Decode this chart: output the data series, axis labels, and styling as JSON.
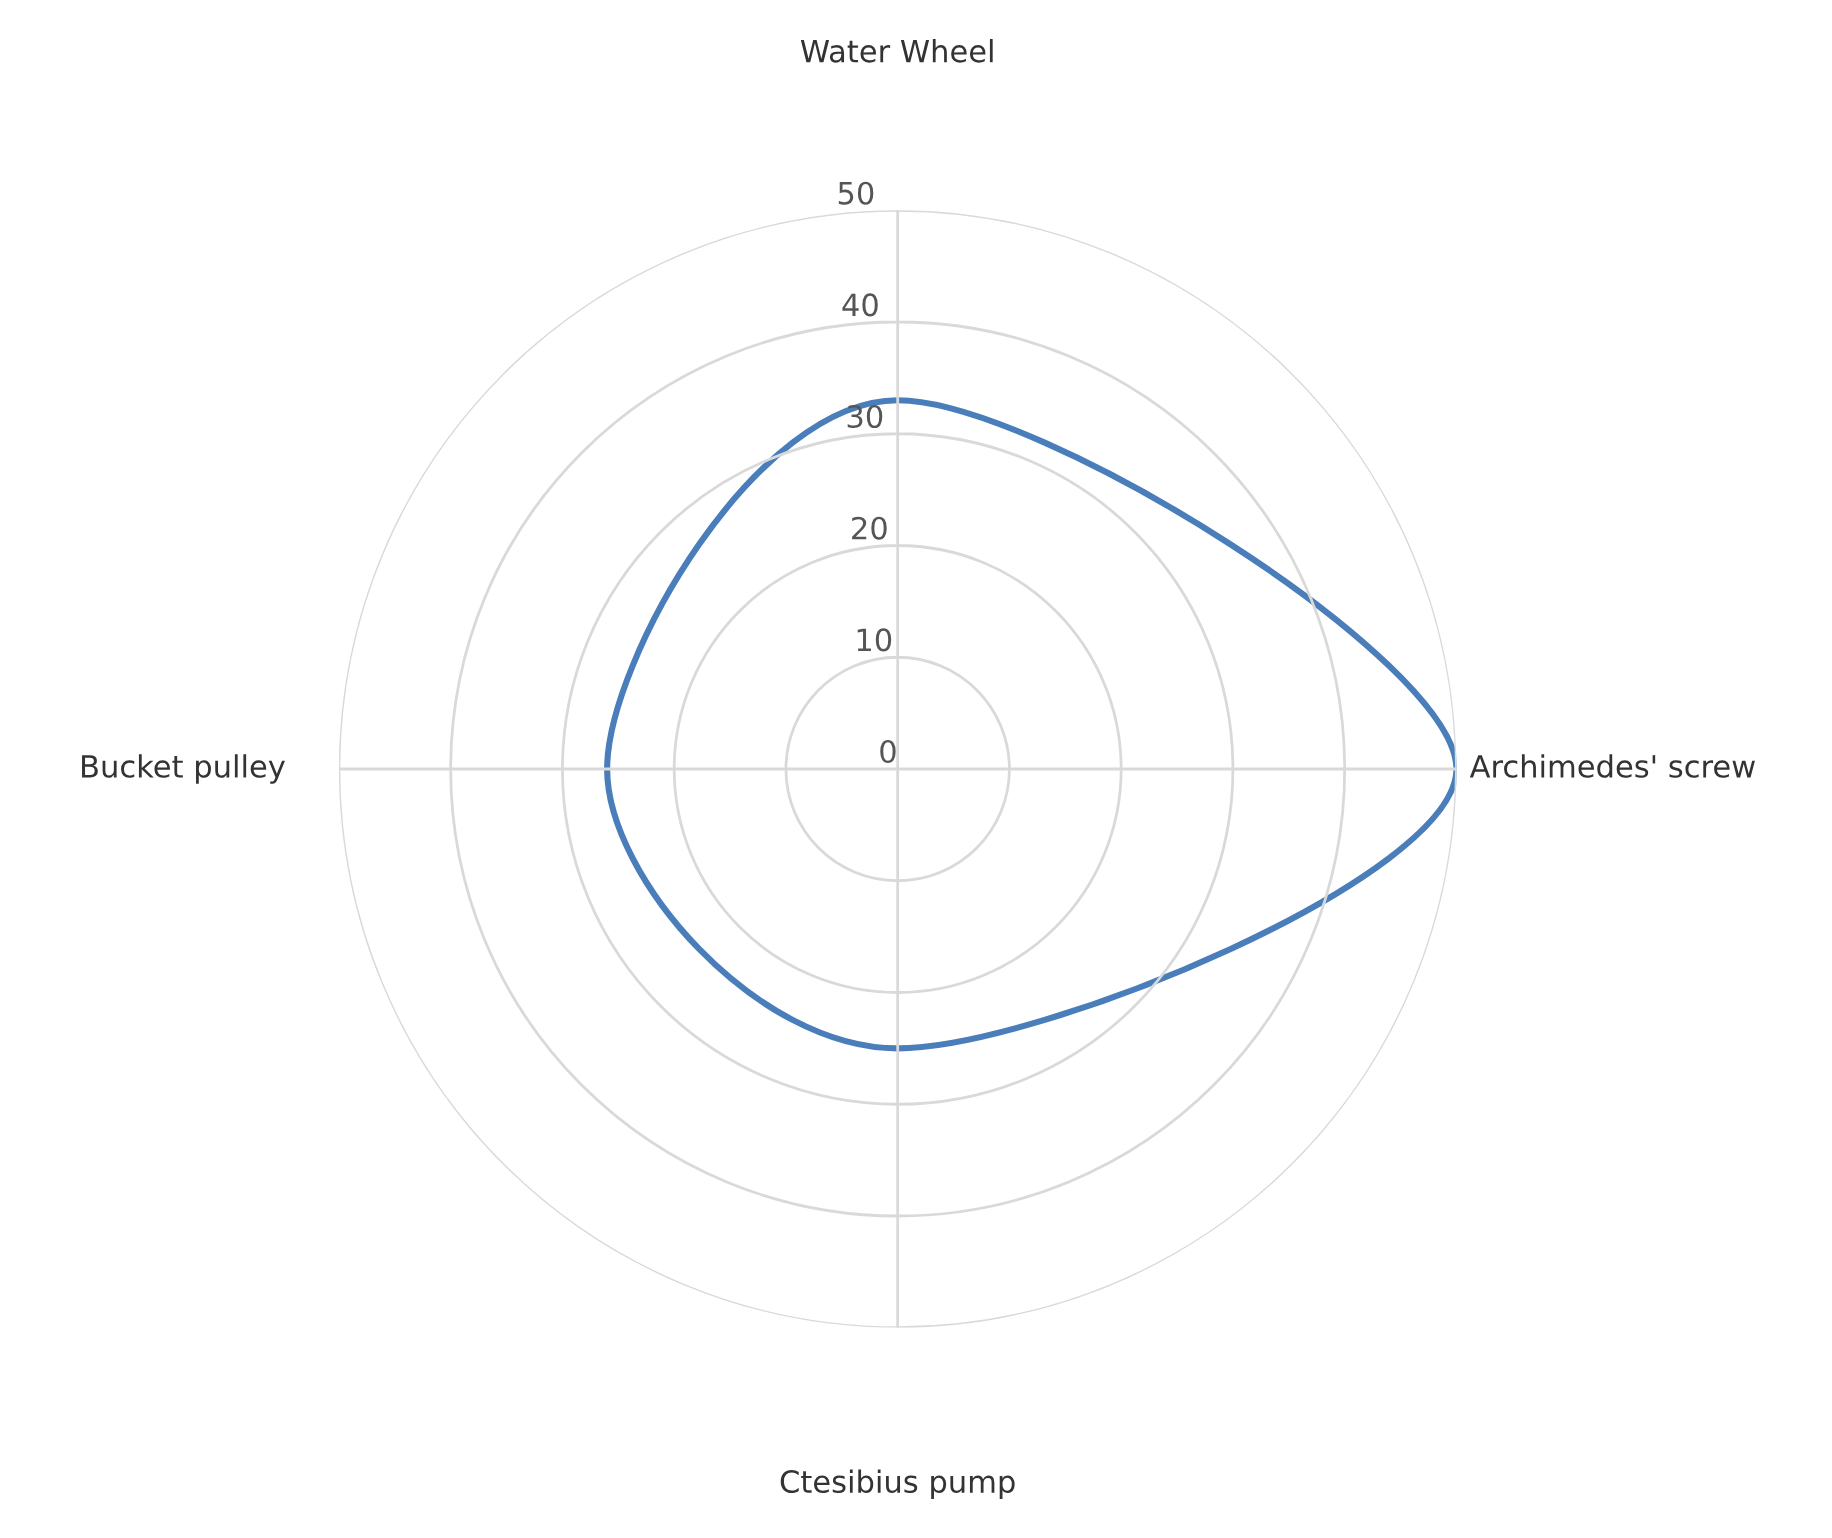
{
  "chart_data": {
    "type": "radar",
    "categories": [
      "Water Wheel",
      "Archimedes' screw",
      "Ctesibius pump",
      "Bucket pulley"
    ],
    "series": [
      {
        "color": "#4a7ebb",
        "values": [
          33,
          50,
          25,
          26
        ]
      }
    ],
    "ylim": [
      0,
      50
    ],
    "yticks": [
      0,
      10,
      20,
      30,
      40,
      50
    ],
    "grid": true,
    "legend": false,
    "marker": "none"
  }
}
